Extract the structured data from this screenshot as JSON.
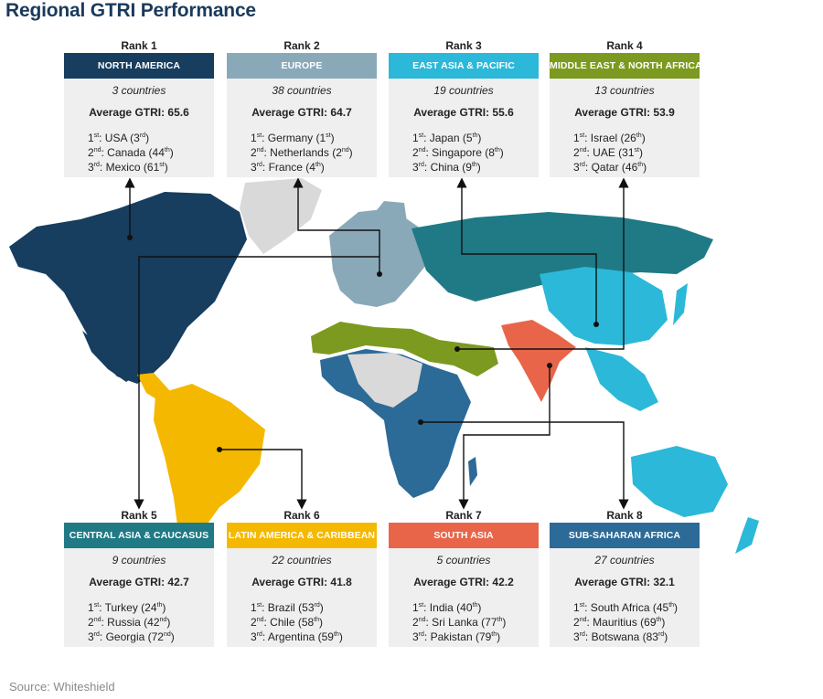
{
  "title": "Regional GTRI Performance",
  "source": "Source: Whiteshield",
  "regions": [
    {
      "rank": "Rank 1",
      "name": "NORTH AMERICA",
      "color": "#173d5f",
      "countries": "3 countries",
      "avg": "Average GTRI: 65.6",
      "top": [
        {
          "ord": "1",
          "suf": "st",
          "country": "USA",
          "pos": "3",
          "psuf": "rd"
        },
        {
          "ord": "2",
          "suf": "nd",
          "country": "Canada",
          "pos": "44",
          "psuf": "th"
        },
        {
          "ord": "3",
          "suf": "rd",
          "country": "Mexico",
          "pos": "61",
          "psuf": "st"
        }
      ]
    },
    {
      "rank": "Rank 2",
      "name": "EUROPE",
      "color": "#8aa9b8",
      "countries": "38 countries",
      "avg": "Average GTRI: 64.7",
      "top": [
        {
          "ord": "1",
          "suf": "st",
          "country": "Germany",
          "pos": "1",
          "psuf": "st"
        },
        {
          "ord": "2",
          "suf": "nd",
          "country": "Netherlands",
          "pos": "2",
          "psuf": "nd"
        },
        {
          "ord": "3",
          "suf": "rd",
          "country": "France",
          "pos": "4",
          "psuf": "th"
        }
      ]
    },
    {
      "rank": "Rank 3",
      "name": "EAST ASIA & PACIFIC",
      "color": "#2cb8d8",
      "countries": "19 countries",
      "avg": "Average GTRI: 55.6",
      "top": [
        {
          "ord": "1",
          "suf": "st",
          "country": "Japan",
          "pos": "5",
          "psuf": "th"
        },
        {
          "ord": "2",
          "suf": "nd",
          "country": "Singapore",
          "pos": "8",
          "psuf": "th"
        },
        {
          "ord": "3",
          "suf": "rd",
          "country": "China",
          "pos": "9",
          "psuf": "th"
        }
      ]
    },
    {
      "rank": "Rank 4",
      "name": "MIDDLE EAST & NORTH AFRICA",
      "color": "#7c9a1f",
      "countries": "13 countries",
      "avg": "Average GTRI: 53.9",
      "top": [
        {
          "ord": "1",
          "suf": "st",
          "country": "Israel",
          "pos": "26",
          "psuf": "th"
        },
        {
          "ord": "2",
          "suf": "nd",
          "country": "UAE",
          "pos": "31",
          "psuf": "st"
        },
        {
          "ord": "3",
          "suf": "rd",
          "country": "Qatar",
          "pos": "46",
          "psuf": "th"
        }
      ]
    },
    {
      "rank": "Rank 5",
      "name": "CENTRAL ASIA & CAUCASUS",
      "color": "#1f7a86",
      "countries": "9 countries",
      "avg": "Average GTRI: 42.7",
      "top": [
        {
          "ord": "1",
          "suf": "st",
          "country": "Turkey",
          "pos": "24",
          "psuf": "th"
        },
        {
          "ord": "2",
          "suf": "nd",
          "country": "Russia",
          "pos": "42",
          "psuf": "nd"
        },
        {
          "ord": "3",
          "suf": "rd",
          "country": "Georgia",
          "pos": "72",
          "psuf": "nd"
        }
      ]
    },
    {
      "rank": "Rank 6",
      "name": "LATIN AMERICA & CARIBBEAN",
      "color": "#f5b800",
      "countries": "22 countries",
      "avg": "Average GTRI: 41.8",
      "top": [
        {
          "ord": "1",
          "suf": "st",
          "country": "Brazil",
          "pos": "53",
          "psuf": "rd"
        },
        {
          "ord": "2",
          "suf": "nd",
          "country": "Chile",
          "pos": "58",
          "psuf": "th"
        },
        {
          "ord": "3",
          "suf": "rd",
          "country": "Argentina",
          "pos": "59",
          "psuf": "th"
        }
      ]
    },
    {
      "rank": "Rank 7",
      "name": "SOUTH ASIA",
      "color": "#e8654a",
      "countries": "5 countries",
      "avg": "Average GTRI: 42.2",
      "top": [
        {
          "ord": "1",
          "suf": "st",
          "country": "India",
          "pos": "40",
          "psuf": "th"
        },
        {
          "ord": "2",
          "suf": "nd",
          "country": "Sri Lanka",
          "pos": "77",
          "psuf": "th"
        },
        {
          "ord": "3",
          "suf": "rd",
          "country": "Pakistan",
          "pos": "79",
          "psuf": "th"
        }
      ]
    },
    {
      "rank": "Rank 8",
      "name": "SUB-SAHARAN AFRICA",
      "color": "#2c6a98",
      "countries": "27 countries",
      "avg": "Average GTRI: 32.1",
      "top": [
        {
          "ord": "1",
          "suf": "st",
          "country": "South Africa",
          "pos": "45",
          "psuf": "th"
        },
        {
          "ord": "2",
          "suf": "nd",
          "country": "Mauritius",
          "pos": "69",
          "psuf": "th"
        },
        {
          "ord": "3",
          "suf": "rd",
          "country": "Botswana",
          "pos": "83",
          "psuf": "rd"
        }
      ]
    }
  ]
}
